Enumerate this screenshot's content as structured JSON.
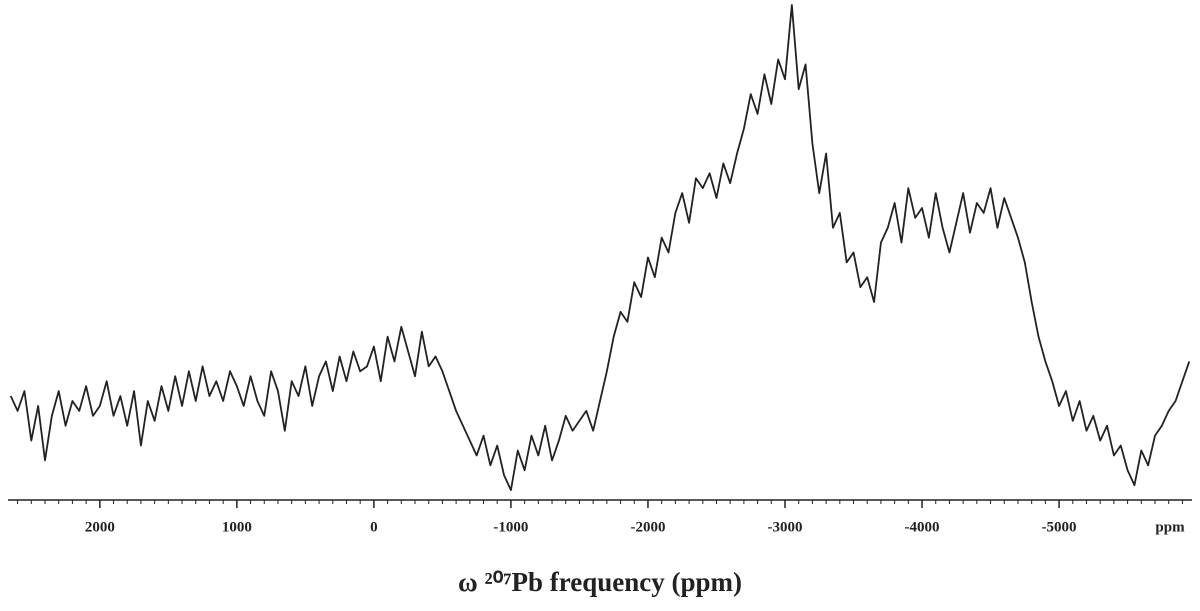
{
  "chart_data": {
    "type": "line",
    "title": "ω ²⁰⁷Pb frequency (ppm)",
    "x_unit_label": "ppm",
    "color": "#222222",
    "xlim": [
      2670,
      -5970
    ],
    "ylim": [
      0,
      100
    ],
    "xticks": [
      {
        "value": 2000,
        "label": "2000"
      },
      {
        "value": 1000,
        "label": "1000"
      },
      0,
      -1000,
      -2000,
      -3000,
      -4000,
      -5000
    ],
    "xticks_minor": [
      2600,
      2500,
      2400,
      2300,
      2200,
      2100,
      2000,
      1900,
      1800,
      1700,
      1600,
      1500,
      1400,
      1300,
      1200,
      1100,
      1000,
      900,
      800,
      700,
      600,
      500,
      400,
      300,
      200,
      100,
      0,
      -100,
      -200,
      -300,
      -400,
      -500,
      -600,
      -700,
      -800,
      -900,
      -1000,
      -1100,
      -1200,
      -1300,
      -1400,
      -1500,
      -1600,
      -1700,
      -1800,
      -1900,
      -2000,
      -2100,
      -2200,
      -2300,
      -2400,
      -2500,
      -2600,
      -2700,
      -2800,
      -2900,
      -3000,
      -3100,
      -3200,
      -3300,
      -3400,
      -3500,
      -3600,
      -3700,
      -3800,
      -3900,
      -4000,
      -4100,
      -4200,
      -4300,
      -4400,
      -4500,
      -4600,
      -4700,
      -4800,
      -4900,
      -5000,
      -5100,
      -5200,
      -5300,
      -5400,
      -5500,
      -5600,
      -5700,
      -5800,
      -5900
    ],
    "x": [
      2650,
      2600,
      2550,
      2500,
      2450,
      2400,
      2350,
      2300,
      2250,
      2200,
      2150,
      2100,
      2050,
      2000,
      1950,
      1900,
      1850,
      1800,
      1750,
      1700,
      1650,
      1600,
      1550,
      1500,
      1450,
      1400,
      1350,
      1300,
      1250,
      1200,
      1150,
      1100,
      1050,
      1000,
      950,
      900,
      850,
      800,
      750,
      700,
      650,
      600,
      550,
      500,
      450,
      400,
      350,
      300,
      250,
      200,
      150,
      100,
      50,
      0,
      -50,
      -100,
      -150,
      -200,
      -250,
      -300,
      -350,
      -400,
      -450,
      -500,
      -550,
      -600,
      -650,
      -700,
      -750,
      -800,
      -850,
      -900,
      -950,
      -1000,
      -1050,
      -1100,
      -1150,
      -1200,
      -1250,
      -1300,
      -1350,
      -1400,
      -1450,
      -1500,
      -1550,
      -1600,
      -1650,
      -1700,
      -1750,
      -1800,
      -1850,
      -1900,
      -1950,
      -2000,
      -2050,
      -2100,
      -2150,
      -2200,
      -2250,
      -2300,
      -2350,
      -2400,
      -2450,
      -2500,
      -2550,
      -2600,
      -2650,
      -2700,
      -2750,
      -2800,
      -2850,
      -2900,
      -2950,
      -3000,
      -3050,
      -3100,
      -3150,
      -3200,
      -3250,
      -3300,
      -3350,
      -3400,
      -3450,
      -3500,
      -3550,
      -3600,
      -3650,
      -3700,
      -3750,
      -3800,
      -3850,
      -3900,
      -3950,
      -4000,
      -4050,
      -4100,
      -4150,
      -4200,
      -4250,
      -4300,
      -4350,
      -4400,
      -4450,
      -4500,
      -4550,
      -4600,
      -4650,
      -4700,
      -4750,
      -4800,
      -4850,
      -4900,
      -4950,
      -5000,
      -5050,
      -5100,
      -5150,
      -5200,
      -5250,
      -5300,
      -5350,
      -5400,
      -5450,
      -5500,
      -5550,
      -5600,
      -5650,
      -5700,
      -5750,
      -5800,
      -5850,
      -5900,
      -5950
    ],
    "values": [
      21,
      18,
      22,
      12,
      19,
      8,
      17,
      22,
      15,
      20,
      18,
      23,
      17,
      19,
      24,
      17,
      21,
      15,
      22,
      11,
      20,
      16,
      23,
      18,
      25,
      19,
      26,
      20,
      27,
      21,
      24,
      20,
      26,
      23,
      19,
      25,
      20,
      17,
      26,
      22,
      14,
      24,
      21,
      27,
      19,
      25,
      28,
      22,
      29,
      24,
      30,
      26,
      27,
      31,
      24,
      33,
      28,
      35,
      30,
      25,
      34,
      27,
      29,
      26,
      22,
      18,
      15,
      12,
      9,
      13,
      7,
      11,
      5,
      2,
      10,
      6,
      13,
      9,
      15,
      8,
      12,
      17,
      14,
      16,
      18,
      14,
      20,
      26,
      33,
      38,
      36,
      44,
      41,
      49,
      45,
      53,
      50,
      58,
      62,
      56,
      65,
      63,
      66,
      61,
      68,
      64,
      70,
      75,
      82,
      78,
      86,
      80,
      89,
      85,
      100,
      83,
      88,
      72,
      62,
      70,
      55,
      58,
      48,
      50,
      43,
      45,
      40,
      52,
      55,
      60,
      52,
      63,
      57,
      59,
      53,
      62,
      55,
      50,
      56,
      62,
      54,
      60,
      58,
      63,
      55,
      61,
      57,
      53,
      48,
      40,
      33,
      28,
      24,
      19,
      22,
      16,
      20,
      14,
      17,
      12,
      15,
      9,
      11,
      6,
      3,
      10,
      7,
      13,
      15,
      18,
      20,
      24,
      28
    ]
  }
}
